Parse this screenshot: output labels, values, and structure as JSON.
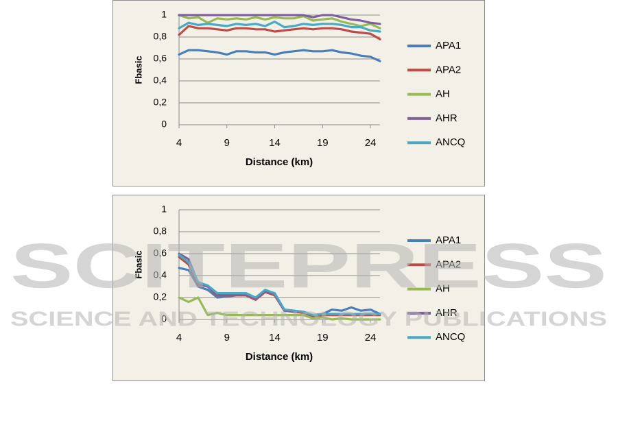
{
  "chart_data": [
    {
      "type": "line",
      "x_label": "Distance (km)",
      "y_label": "Fbasic",
      "x": [
        4,
        5,
        6,
        7,
        8,
        9,
        10,
        11,
        12,
        13,
        14,
        15,
        16,
        17,
        18,
        19,
        20,
        21,
        22,
        23,
        24,
        25
      ],
      "xlim": [
        4,
        25
      ],
      "xticks": [
        4,
        9,
        14,
        19,
        24
      ],
      "ylim": [
        0,
        1
      ],
      "yticks": [
        0,
        {
          "value": 0.2,
          "label": "0,2"
        },
        {
          "value": 0.4,
          "label": "0,4"
        },
        {
          "value": 0.6,
          "label": "0,6"
        },
        {
          "value": 0.8,
          "label": "0,8"
        },
        1
      ],
      "grid": true,
      "legend": "right",
      "series": [
        {
          "name": "APA1",
          "color": "#4a7ebb",
          "values": [
            0.64,
            0.68,
            0.68,
            0.67,
            0.66,
            0.64,
            0.67,
            0.67,
            0.66,
            0.66,
            0.64,
            0.66,
            0.67,
            0.68,
            0.67,
            0.67,
            0.68,
            0.66,
            0.65,
            0.63,
            0.62,
            0.58
          ]
        },
        {
          "name": "APA2",
          "color": "#be4b48",
          "values": [
            0.82,
            0.9,
            0.88,
            0.88,
            0.87,
            0.86,
            0.88,
            0.88,
            0.87,
            0.87,
            0.85,
            0.86,
            0.87,
            0.88,
            0.87,
            0.88,
            0.88,
            0.87,
            0.85,
            0.84,
            0.83,
            0.78
          ]
        },
        {
          "name": "AH",
          "color": "#98b954",
          "values": [
            1,
            0.97,
            0.98,
            0.93,
            0.97,
            0.96,
            0.97,
            0.96,
            0.98,
            0.96,
            0.98,
            0.97,
            0.97,
            0.99,
            0.95,
            0.96,
            0.97,
            0.94,
            0.92,
            0.9,
            0.92,
            0.88
          ]
        },
        {
          "name": "AHR",
          "color": "#7d60a0",
          "values": [
            1,
            1,
            1,
            1,
            1,
            1,
            1,
            1,
            1,
            1,
            1,
            1,
            1,
            1,
            0.98,
            1,
            1,
            0.98,
            0.96,
            0.95,
            0.93,
            0.92
          ]
        },
        {
          "name": "ANCQ",
          "color": "#46aac5",
          "values": [
            0.88,
            0.93,
            0.91,
            0.92,
            0.91,
            0.9,
            0.92,
            0.91,
            0.92,
            0.9,
            0.94,
            0.89,
            0.9,
            0.92,
            0.91,
            0.92,
            0.92,
            0.91,
            0.89,
            0.89,
            0.86,
            0.85
          ]
        }
      ]
    },
    {
      "type": "line",
      "x_label": "Distance (km)",
      "y_label": "Fbasic",
      "x": [
        4,
        5,
        6,
        7,
        8,
        9,
        10,
        11,
        12,
        13,
        14,
        15,
        16,
        17,
        18,
        19,
        20,
        21,
        22,
        23,
        24,
        25
      ],
      "xlim": [
        4,
        25
      ],
      "xticks": [
        4,
        9,
        14,
        19,
        24
      ],
      "ylim": [
        0,
        1
      ],
      "yticks": [
        0,
        {
          "value": 0.2,
          "label": "0,2"
        },
        {
          "value": 0.4,
          "label": "0,4"
        },
        {
          "value": 0.6,
          "label": "0,6"
        },
        {
          "value": 0.8,
          "label": "0,8"
        },
        1
      ],
      "grid": true,
      "legend": "right",
      "series": [
        {
          "name": "APA1",
          "color": "#4a7ebb",
          "values": [
            0.47,
            0.45,
            0.3,
            0.27,
            0.2,
            0.21,
            0.22,
            0.22,
            0.18,
            0.27,
            0.22,
            0.09,
            0.08,
            0.06,
            0.03,
            0.05,
            0.09,
            0.08,
            0.11,
            0.08,
            0.09,
            0.05
          ]
        },
        {
          "name": "APA2",
          "color": "#be4b48",
          "values": [
            0.57,
            0.5,
            0.32,
            0.3,
            0.22,
            0.22,
            0.22,
            0.22,
            0.18,
            0.25,
            0.22,
            0.08,
            0.07,
            0.06,
            0.03,
            0.04,
            0.04,
            0.04,
            0.04,
            0.04,
            0.04,
            0.04
          ]
        },
        {
          "name": "AH",
          "color": "#98b954",
          "values": [
            0.2,
            0.16,
            0.2,
            0.04,
            0.06,
            0.04,
            0.04,
            0.04,
            0.04,
            0.04,
            0.04,
            0.04,
            0.04,
            0.04,
            0.01,
            0.02,
            0,
            0.01,
            0,
            0,
            0,
            0
          ]
        },
        {
          "name": "AHR",
          "color": "#7d60a0",
          "values": [
            0.6,
            0.55,
            0.33,
            0.3,
            0.23,
            0.23,
            0.23,
            0.23,
            0.19,
            0.26,
            0.23,
            0.08,
            0.08,
            0.07,
            0.04,
            0.05,
            0.05,
            0.05,
            0.05,
            0.05,
            0.05,
            0.05
          ]
        },
        {
          "name": "ANCQ",
          "color": "#46aac5",
          "values": [
            0.59,
            0.52,
            0.34,
            0.31,
            0.24,
            0.24,
            0.24,
            0.24,
            0.2,
            0.27,
            0.24,
            0.09,
            0.08,
            0.07,
            0.04,
            0.05,
            0.05,
            0.05,
            0.05,
            0.05,
            0.05,
            0.05
          ]
        }
      ]
    }
  ],
  "watermark": {
    "title": "SCITEPRESS",
    "subtitle": "SCIENCE AND TECHNOLOGY PUBLICATIONS"
  }
}
